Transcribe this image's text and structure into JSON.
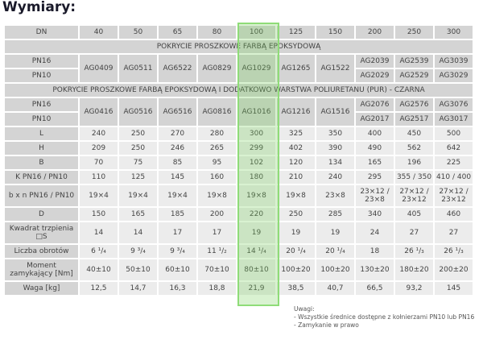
{
  "title": "Wymiary:",
  "dn": {
    "label": "DN",
    "values": [
      "40",
      "50",
      "65",
      "80",
      "100",
      "125",
      "150",
      "200",
      "250",
      "300"
    ]
  },
  "section1": "POKRYCIE PROSZKOWE FARBĄ EPOKSYDOWĄ",
  "section2": "POKRYCIE PROSZKOWE FARBĄ EPOKSYDOWĄ I DODATKOWO WARSTWA POLIURETANU (PUR) - CZARNA",
  "pn16": "PN16",
  "pn10": "PN10",
  "codes1_shared": [
    "AG0409",
    "AG0511",
    "AG6522",
    "AG0829",
    "AG1029",
    "AG1265",
    "AG1522"
  ],
  "codes1_pn16": [
    "AG2039",
    "AG2539",
    "AG3039"
  ],
  "codes1_pn10": [
    "AG2029",
    "AG2529",
    "AG3029"
  ],
  "codes2_shared": [
    "AG0416",
    "AG0516",
    "AG6516",
    "AG0816",
    "AG1016",
    "AG1216",
    "AG1516"
  ],
  "codes2_pn16": [
    "AG2076",
    "AG2576",
    "AG3076"
  ],
  "codes2_pn10": [
    "AG2017",
    "AG2517",
    "AG3017"
  ],
  "rows": [
    {
      "label": "L",
      "values": [
        "240",
        "250",
        "270",
        "280",
        "300",
        "325",
        "350",
        "400",
        "450",
        "500"
      ]
    },
    {
      "label": "H",
      "values": [
        "209",
        "250",
        "246",
        "265",
        "299",
        "402",
        "390",
        "490",
        "562",
        "642"
      ]
    },
    {
      "label": "B",
      "values": [
        "70",
        "75",
        "85",
        "95",
        "102",
        "120",
        "134",
        "165",
        "196",
        "225"
      ]
    },
    {
      "label": "K  PN16 / PN10",
      "values": [
        "110",
        "125",
        "145",
        "160",
        "180",
        "210",
        "240",
        "295",
        "355 / 350",
        "410 / 400"
      ]
    },
    {
      "label": "b x n PN16 / PN10",
      "values": [
        "19×4",
        "19×4",
        "19×4",
        "19×8",
        "19×8",
        "19×8",
        "23×8",
        "23×12 / 23×8",
        "27×12 / 23×12",
        "27×12 / 23×12"
      ],
      "tall": true
    },
    {
      "label": "D",
      "values": [
        "150",
        "165",
        "185",
        "200",
        "220",
        "250",
        "285",
        "340",
        "405",
        "460"
      ]
    },
    {
      "label": "Kwadrat trzpienia □S",
      "values": [
        "14",
        "14",
        "17",
        "17",
        "19",
        "19",
        "19",
        "24",
        "27",
        "27"
      ],
      "tall": true
    },
    {
      "label": "Liczba obrotów",
      "values": [
        "6 ¹/₄",
        "9 ³/₄",
        "9 ³/₄",
        "11 ¹/₂",
        "14 ¹/₄",
        "20 ¹/₄",
        "20 ¹/₄",
        "18",
        "26 ¹/₃",
        "26 ¹/₃"
      ]
    },
    {
      "label": "Moment zamykający [Nm]",
      "values": [
        "40±10",
        "50±10",
        "60±10",
        "70±10",
        "80±10",
        "100±20",
        "100±20",
        "130±20",
        "180±20",
        "200±20"
      ],
      "tall": true
    },
    {
      "label": "Waga [kg]",
      "values": [
        "12,5",
        "14,7",
        "16,3",
        "18,8",
        "21,9",
        "38,5",
        "40,7",
        "66,5",
        "93,2",
        "145"
      ]
    }
  ],
  "notes": {
    "heading": "Uwagi:",
    "items": [
      "- Wszystkie średnice dostępne z kołnierzami PN10 lub PN16",
      "- Zamykanie w prawo"
    ]
  }
}
